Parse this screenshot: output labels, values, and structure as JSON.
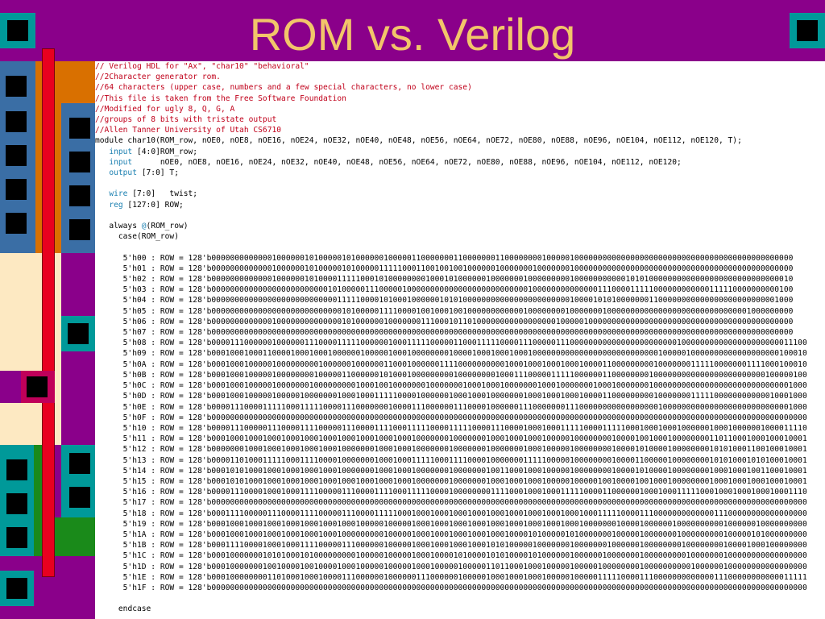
{
  "title": "ROM vs. Verilog",
  "code": {
    "comments": [
      "// Verilog HDL for \"Ax\", \"char10\" \"behavioral\"",
      "//2Character generator rom.",
      "//64 characters (upper case, numbers and a few special characters, no lower case)",
      "//This file is taken from the Free Software Foundation",
      "//Modified for ugly 8, Q, G, A",
      "//groups of 8 bits with tristate output",
      "//Allen Tanner University of Utah CS6710"
    ],
    "module_line": "module char10(ROM_row, nOE0, nOE8, nOE16, nOE24, nOE32, nOE40, nOE48, nOE56, nOE64, nOE72, nOE80, nOE88, nOE96, nOE104, nOE112, nOE120, T);",
    "input1_kw": "input",
    "input1_rest": " [4:0]ROM_row;",
    "input2_kw": "input",
    "input2_rest": "      nOE0, nOE8, nOE16, nOE24, nOE32, nOE40, nOE48, nOE56, nOE64, nOE72, nOE80, nOE88, nOE96, nOE104, nOE112, nOE120;",
    "output_kw": "output",
    "output_rest": " [7:0] T;",
    "wire_kw": "wire",
    "wire_rest": " [7:0]   twist;",
    "reg_kw": "reg",
    "reg_rest": " [127:0] ROW;",
    "always_kw": "always",
    "always_at": " @",
    "always_rest": "(ROM_row)",
    "case_line": "  case(ROM_row)",
    "rows": [
      "  5'h00 : ROW = 128'b00000000000001000000101000001010000001000001100000001100000001100000000100000100000000000000000000000000000000000000000000000",
      "  5'h01 : ROW = 128'b00000000000001000000101000001010000011111000110010010010000001000000010000000100000000000000000000000000000000000000000000000",
      "  5'h02 : ROW = 128'b00000000000001000000101000011111000101000000001000101000000100000001000000000100000000000101010000000000000000000000000000010",
      "  5'h03 : ROW = 128'b00000000000000000000000001010000011100000100000000000000000000000000100000000000000111000011111000000000000111110000000000100",
      "  5'h04 : ROW = 128'b00000000000000000000000000011111000010100010000001010100000000000000000000000100001010100000001100000000000000000000000001000",
      "  5'h05 : ROW = 128'b00000000000000000000000000001010000011110000100100010010000000000001000000001000000010000000000000000000000000000001000000000",
      "  5'h06 : ROW = 128'b00000000000001000000000000001010000001000000011100010110100000000000000000100000100000000000000000000000000000000000000000000",
      "  5'h07 : ROW = 128'b00000000000000000000000000000000000000000000000000000000000000000000000000000000000000000000000000000000000000000000000000000",
      "  5'h08 : ROW = 128'b00001110000001000000111000011111000000100011111000001100011111000011100000111000000000000000000000001000000000000000000000011100",
      "  5'h09 : ROW = 128'b00010001000110000100010001000000100000100010000000010000100010001000100000000000000000000000000010000010000000000000000000100010",
      "  5'h0A : ROW = 128'b00010001000001000000000100000010000001100010000001111000000000010001000100010001000011000000000100000001111100000001111000100010",
      "  5'h0B : ROW = 128'b00010001000001000000001000001100000010100010000000001000000001000111000001111100000011000000001000000000000000000000000100000100",
      "  5'h0C : ROW = 128'b00010001000001000000010000000001000100100000001000000010001000100000001000100000001000100000001000000000000000000000000000001000",
      "  5'h0D : ROW = 128'b00010001000001000001000000010001000111110000100000010001000100000001000100010001000011000000000100000001111100000000000010001000",
      "  5'h0E : ROW = 128'b00001110000111110001111100001110000000100001110000001110000100000011100000001110000000000000000010000000000000000000000000001000",
      "  5'h0F : ROW = 128'b00000000000000000000000000000000000000000000000000000000000000000000000000000000000000000000000000000000000000000000000000000000",
      "  5'h10 : ROW = 128'b00001110000011100001111000001110000111100011111000011111000011100001000100011111000011111000100010001000000100010000001000011110",
      "  5'h11 : ROW = 128'b00010001000100010001000100010001000100010001000000010000000100010001000100000100000000100001001000100000000110110001000100010001",
      "  5'h12 : ROW = 128'b00000001000100010001000100010000000100010001000000010000000100000001000100000100000000100001010000100000000101010001100100010001",
      "  5'h13 : ROW = 128'b00001101000111110001111000010000000100010001111100011110000100000001111100000100000000100001100000100000000101010001010100010001",
      "  5'h14 : ROW = 128'b00010101000100010001000100010000000100010001000000010000000100110001000100000100000000100001010000100000000100010001001100010001",
      "  5'h15 : ROW = 128'b00010101000100010001000100010001000100010001000000010000000100010001000100000100000100100001001000100000000100010001000100010001",
      "  5'h16 : ROW = 128'b00001110000100010001111000001110000111100011111000010000000011110001000100011111000011000000100010001111100010001000100010001110",
      "  5'h17 : ROW = 128'b00000000000000000000000000000000000000000000000000000000000000000000000000000000000000000000000000000000000000000000000000000000",
      "  5'h18 : ROW = 128'b00011110000011100001111000001110000111110001000100010001000100010001000100010001000111110000111000000000000011100000000000000000",
      "  5'h19 : ROW = 128'b00010001000100010001000100010001000001000001000100010001000100010001000100010001000000010000100000010000000000100000010000000000",
      "  5'h1A : ROW = 128'b00010001000100010001000100010000000001000001000100010001000100010000101000001010000000100000100000001000000000100000101000000000",
      "  5'h1B : ROW = 128'b00011110000100010001111000001110000001000001000100010001000101010000010000000100000001000000100000000100000000100001000100000000",
      "  5'h1C : ROW = 128'b00010000000101010001010000000001000001000001000100001010000101010000101000000100000010000000100000000010000000100000000000000000",
      "  5'h1D : ROW = 128'b00010000000100100001001000010001000001000001000100000100000110110001000100000100000100000000100000000001000000100000000000000000",
      "  5'h1E : ROW = 128'b00010000000011010001000100001110000001000000111000000100000100010001000100000100000111110000111000000000000011100000000000011111",
      "  5'h1F : ROW = 128'b00000000000000000000000000000000000000000000000000000000000000000000000000000000000000000000000000000000000000000000000000000000"
    ],
    "endcase_line": "endcase"
  },
  "colors": {
    "background": "#8a008a",
    "title": "#f2c56a",
    "comment": "#c0001a",
    "keyword": "#1a7fb0",
    "teal": "#009999",
    "orange": "#d97000",
    "red": "#e8001f",
    "blue_steel": "#3a6ea5",
    "cream": "#fde9c2",
    "green": "#1a8a1a",
    "crimson": "#c0005a"
  },
  "icons": [
    "corner-square-left",
    "corner-square-right"
  ]
}
